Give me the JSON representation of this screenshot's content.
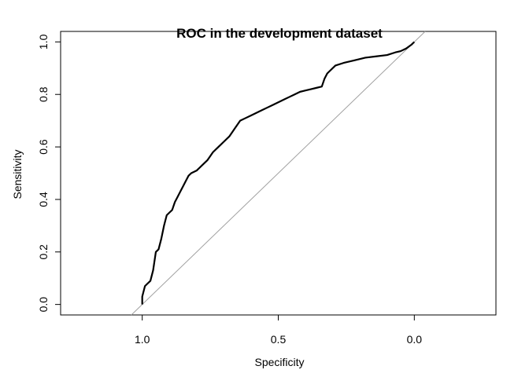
{
  "chart_data": {
    "type": "line",
    "title": "ROC in the development dataset",
    "xlabel": "Specificity",
    "ylabel": "Sensitivity",
    "x_reversed": true,
    "xlim": [
      1.3,
      -0.3
    ],
    "ylim": [
      -0.04,
      1.04
    ],
    "x_ticks": [
      1.0,
      0.5,
      0.0
    ],
    "x_tick_labels": [
      "1.0",
      "0.5",
      "0.0"
    ],
    "y_ticks": [
      0.0,
      0.2,
      0.4,
      0.6,
      0.8,
      1.0
    ],
    "y_tick_labels": [
      "0.0",
      "0.2",
      "0.4",
      "0.6",
      "0.8",
      "1.0"
    ],
    "grid": false,
    "legend": "none",
    "series": [
      {
        "role": "roc",
        "color": "#000000",
        "x": [
          1.0,
          1.0,
          0.99,
          0.98,
          0.97,
          0.96,
          0.95,
          0.94,
          0.93,
          0.92,
          0.91,
          0.9,
          0.89,
          0.88,
          0.87,
          0.86,
          0.85,
          0.84,
          0.83,
          0.82,
          0.8,
          0.78,
          0.76,
          0.74,
          0.72,
          0.7,
          0.68,
          0.66,
          0.64,
          0.62,
          0.6,
          0.58,
          0.56,
          0.54,
          0.52,
          0.5,
          0.48,
          0.46,
          0.44,
          0.42,
          0.4,
          0.38,
          0.36,
          0.34,
          0.33,
          0.32,
          0.31,
          0.29,
          0.26,
          0.22,
          0.18,
          0.14,
          0.1,
          0.07,
          0.05,
          0.03,
          0.01,
          0.0
        ],
        "y": [
          0.0,
          0.03,
          0.07,
          0.08,
          0.09,
          0.13,
          0.2,
          0.21,
          0.25,
          0.3,
          0.34,
          0.35,
          0.36,
          0.39,
          0.41,
          0.43,
          0.45,
          0.47,
          0.49,
          0.5,
          0.51,
          0.53,
          0.55,
          0.58,
          0.6,
          0.62,
          0.64,
          0.67,
          0.7,
          0.71,
          0.72,
          0.73,
          0.74,
          0.75,
          0.76,
          0.77,
          0.78,
          0.79,
          0.8,
          0.81,
          0.815,
          0.82,
          0.825,
          0.83,
          0.86,
          0.88,
          0.89,
          0.91,
          0.92,
          0.93,
          0.94,
          0.945,
          0.95,
          0.96,
          0.965,
          0.975,
          0.99,
          1.0
        ]
      },
      {
        "role": "reference",
        "color": "#a0a0a0",
        "x": [
          1.04,
          -0.04
        ],
        "y": [
          -0.04,
          1.04
        ]
      }
    ]
  }
}
